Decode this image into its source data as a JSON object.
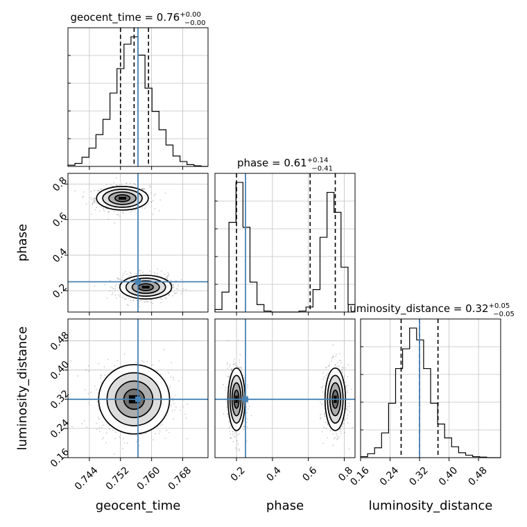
{
  "chart_data": {
    "type": "corner",
    "parameters": [
      "geocent_time",
      "phase",
      "luminosity_distance"
    ],
    "truths": {
      "geocent_time": 0.7565,
      "phase": 0.25,
      "luminosity_distance": 0.32
    },
    "ranges": {
      "geocent_time": [
        0.7385,
        0.7745
      ],
      "phase": [
        0.08,
        0.86
      ],
      "luminosity_distance": [
        0.16,
        0.54
      ]
    },
    "titles": {
      "geocent_time": {
        "prefix": "geocent_time = 0.76",
        "plus": "+0.00",
        "minus": "−0.00"
      },
      "phase": {
        "prefix": "phase = 0.61",
        "plus": "+0.14",
        "minus": "−0.41"
      },
      "luminosity_distance": {
        "prefix": "luminosity_distance = 0.32",
        "plus": "+0.05",
        "minus": "−0.05"
      }
    },
    "quantile_lines": {
      "geocent_time": [
        0.752,
        0.7555,
        0.7592
      ],
      "phase": [
        0.2,
        0.61,
        0.75
      ],
      "luminosity_distance": [
        0.27,
        0.32,
        0.37
      ]
    },
    "ticks": {
      "geocent_time": [
        "0.744",
        "0.752",
        "0.760",
        "0.768"
      ],
      "phase": [
        "0.2",
        "0.4",
        "0.6",
        "0.8"
      ],
      "luminosity_distance": [
        "0.16",
        "0.24",
        "0.32",
        "0.40",
        "0.48"
      ]
    },
    "histograms": {
      "geocent_time": {
        "edges": [
          0.7385,
          0.7403,
          0.7421,
          0.7439,
          0.7457,
          0.7475,
          0.7493,
          0.7511,
          0.7529,
          0.7547,
          0.7565,
          0.7583,
          0.7601,
          0.7619,
          0.7637,
          0.7655,
          0.7673,
          0.7691,
          0.7709,
          0.7727,
          0.7745
        ],
        "counts": [
          2,
          5,
          15,
          30,
          52,
          77,
          120,
          160,
          200,
          212,
          182,
          128,
          90,
          60,
          35,
          17,
          8,
          3,
          1,
          0
        ]
      },
      "phase": {
        "edges": [
          0.08,
          0.119,
          0.158,
          0.197,
          0.236,
          0.275,
          0.314,
          0.353,
          0.392,
          0.431,
          0.47,
          0.509,
          0.548,
          0.587,
          0.626,
          0.665,
          0.704,
          0.743,
          0.782,
          0.821,
          0.86
        ],
        "counts": [
          5,
          40,
          180,
          260,
          170,
          60,
          15,
          2,
          0,
          0,
          0,
          0,
          2,
          10,
          45,
          150,
          240,
          200,
          90,
          15
        ]
      },
      "luminosity_distance": {
        "edges": [
          0.16,
          0.179,
          0.198,
          0.217,
          0.236,
          0.255,
          0.274,
          0.293,
          0.312,
          0.331,
          0.35,
          0.369,
          0.388,
          0.407,
          0.426,
          0.445,
          0.464,
          0.483,
          0.502,
          0.521,
          0.54
        ],
        "counts": [
          2,
          8,
          20,
          50,
          110,
          180,
          220,
          262,
          238,
          180,
          110,
          68,
          40,
          22,
          10,
          5,
          2,
          1,
          0,
          0
        ]
      }
    },
    "modes_2d": {
      "geocent_time_phase": [
        {
          "mx": 0.7525,
          "my": 0.72,
          "sx": 0.0035,
          "sy": 0.035
        },
        {
          "mx": 0.7585,
          "my": 0.22,
          "sx": 0.0035,
          "sy": 0.035
        }
      ],
      "geocent_time_luminosity_distance": [
        {
          "mx": 0.7555,
          "my": 0.32,
          "sx": 0.0048,
          "sy": 0.05
        }
      ],
      "phase_luminosity_distance": [
        {
          "mx": 0.2,
          "my": 0.32,
          "sx": 0.025,
          "sy": 0.045
        },
        {
          "mx": 0.75,
          "my": 0.32,
          "sx": 0.03,
          "sy": 0.045
        }
      ]
    },
    "colors": {
      "truth": "#4682b4",
      "hist": "#000000",
      "grid": "#c0c0c0"
    }
  }
}
